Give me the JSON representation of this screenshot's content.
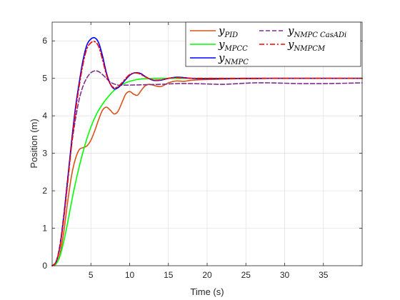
{
  "chart_data": {
    "type": "line",
    "title": "",
    "xlabel": "Time (s)",
    "ylabel": "Position (m)",
    "xlim": [
      0,
      40
    ],
    "ylim": [
      0,
      6.5
    ],
    "xticks": [
      5,
      10,
      15,
      20,
      25,
      30,
      35
    ],
    "yticks": [
      0,
      1,
      2,
      3,
      4,
      5,
      6
    ],
    "grid": true,
    "legend": {
      "placement": "top-right",
      "columns": 2
    },
    "series": [
      {
        "name": "y",
        "subscript": "PID",
        "color": "#D95319",
        "dash": "solid",
        "x": [
          0,
          0.5,
          1,
          1.5,
          2,
          2.5,
          3,
          3.5,
          4,
          4.5,
          5,
          5.5,
          6,
          6.5,
          7,
          7.5,
          8,
          8.5,
          9,
          9.5,
          10,
          10.5,
          11,
          11.5,
          12,
          12.5,
          13,
          14,
          15,
          16,
          17,
          18,
          20,
          22,
          24,
          26,
          28,
          30,
          35,
          40
        ],
        "y": [
          0,
          0.05,
          0.3,
          0.9,
          1.7,
          2.4,
          2.85,
          3.1,
          3.15,
          3.2,
          3.35,
          3.6,
          3.9,
          4.15,
          4.23,
          4.15,
          4.05,
          4.12,
          4.35,
          4.58,
          4.65,
          4.58,
          4.55,
          4.68,
          4.8,
          4.84,
          4.82,
          4.78,
          4.88,
          4.93,
          4.92,
          4.95,
          4.97,
          4.98,
          4.99,
          4.99,
          5.0,
          5.0,
          5.0,
          5.0
        ]
      },
      {
        "name": "y",
        "subscript": "MPCC",
        "color": "#00FF00",
        "dash": "solid",
        "x": [
          0,
          0.5,
          1,
          1.5,
          2,
          2.5,
          3,
          3.5,
          4,
          4.5,
          5,
          5.5,
          6,
          7,
          8,
          9,
          10,
          11,
          12,
          14,
          16,
          20,
          25,
          30,
          35,
          40
        ],
        "y": [
          0,
          0.05,
          0.25,
          0.65,
          1.15,
          1.7,
          2.2,
          2.65,
          3.05,
          3.4,
          3.7,
          3.95,
          4.15,
          4.45,
          4.68,
          4.83,
          4.92,
          4.97,
          4.99,
          5.0,
          5.0,
          5.0,
          5.0,
          5.0,
          5.0,
          5.0
        ]
      },
      {
        "name": "y",
        "subscript": "NMPC",
        "color": "#0000FF",
        "dash": "solid",
        "x": [
          0,
          0.5,
          1,
          1.5,
          2,
          2.5,
          3,
          3.5,
          4,
          4.5,
          5,
          5.5,
          6,
          6.5,
          7,
          7.5,
          8,
          8.5,
          9,
          9.5,
          10,
          10.5,
          11,
          11.5,
          12,
          13,
          14,
          15,
          16,
          17,
          18,
          20,
          25,
          30,
          35,
          40
        ],
        "y": [
          0,
          0.1,
          0.5,
          1.3,
          2.3,
          3.3,
          4.2,
          4.9,
          5.5,
          5.9,
          6.05,
          6.08,
          5.95,
          5.6,
          5.15,
          4.85,
          4.72,
          4.75,
          4.85,
          4.97,
          5.08,
          5.14,
          5.15,
          5.12,
          5.05,
          4.95,
          4.95,
          5.0,
          5.03,
          5.02,
          5.0,
          4.99,
          5.0,
          5.0,
          5.0,
          5.0
        ]
      },
      {
        "name": "y",
        "subscript": "NMPC CasADi",
        "color": "#7E2F8E",
        "dash": "dashed",
        "x": [
          0,
          0.5,
          1,
          1.5,
          2,
          2.5,
          3,
          3.5,
          4,
          4.5,
          5,
          5.5,
          6,
          6.5,
          7,
          7.5,
          8,
          8.5,
          9,
          10,
          12,
          14,
          16,
          18,
          20,
          22,
          24,
          26,
          28,
          30,
          32,
          35,
          38,
          40
        ],
        "y": [
          0,
          0.1,
          0.55,
          1.35,
          2.3,
          3.2,
          3.9,
          4.45,
          4.8,
          5.02,
          5.15,
          5.2,
          5.18,
          5.1,
          5.0,
          4.9,
          4.85,
          4.82,
          4.82,
          4.82,
          4.83,
          4.84,
          4.86,
          4.86,
          4.85,
          4.84,
          4.86,
          4.88,
          4.88,
          4.87,
          4.86,
          4.86,
          4.87,
          4.88
        ]
      },
      {
        "name": "y",
        "subscript": "NMPCM",
        "color": "#FF0000",
        "dash": "dashdot",
        "x": [
          0,
          0.5,
          1,
          1.5,
          2,
          2.5,
          3,
          3.5,
          4,
          4.5,
          5,
          5.5,
          6,
          6.5,
          7,
          7.5,
          8,
          8.5,
          9,
          9.5,
          10,
          10.5,
          11,
          11.5,
          12,
          13,
          14,
          15,
          16,
          17,
          18,
          20,
          25,
          30,
          35,
          40
        ],
        "y": [
          0,
          0.1,
          0.5,
          1.25,
          2.2,
          3.2,
          4.1,
          4.8,
          5.4,
          5.8,
          5.95,
          5.98,
          5.85,
          5.5,
          5.1,
          4.85,
          4.75,
          4.78,
          4.88,
          5.0,
          5.1,
          5.14,
          5.14,
          5.1,
          5.04,
          4.96,
          4.96,
          5.0,
          5.02,
          5.01,
          5.0,
          5.0,
          5.0,
          5.0,
          5.0,
          5.0
        ]
      }
    ]
  }
}
